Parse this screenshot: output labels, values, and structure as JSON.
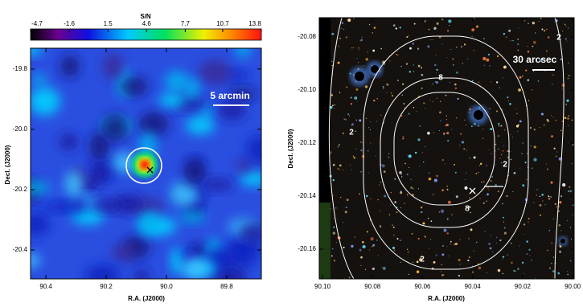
{
  "chart_data": [
    {
      "type": "heatmap",
      "colorbar": {
        "label": "S/N",
        "ticks": [
          -4.7,
          -1.6,
          1.5,
          4.6,
          7.7,
          10.7,
          13.8
        ],
        "lim": [
          -4.7,
          13.8
        ]
      },
      "xlabel": "R.A. (J2000)",
      "ylabel": "Decl. (J2000)",
      "xlim": [
        90.451,
        89.685
      ],
      "ylim": [
        -20.496,
        -19.731
      ],
      "xticks": [
        90.4,
        90.2,
        {
          "value": 90,
          "label": "90.0"
        },
        89.8
      ],
      "yticks": [
        -19.8,
        {
          "value": -20,
          "label": "-20.0"
        },
        -20.2,
        -20.4
      ],
      "annotation": "5 arcmin"
    },
    {
      "type": "image",
      "xlabel": "R.A. (J2000)",
      "ylabel": "Decl. (J2000)",
      "xlim": [
        90.1013,
        89.9994
      ],
      "ylim": [
        -20.1712,
        -20.0727
      ],
      "xticks": [
        {
          "value": 90.1,
          "label": "90.10"
        },
        90.08,
        90.06,
        90.04,
        90.02,
        {
          "value": 90,
          "label": "90.00"
        }
      ],
      "yticks": [
        -20.08,
        {
          "value": -20.1,
          "label": "-20.10"
        },
        -20.12,
        -20.14,
        -20.16
      ],
      "annotation": "30 arcsec",
      "contour_labels": [
        2,
        2,
        2,
        2,
        8,
        8
      ]
    }
  ]
}
